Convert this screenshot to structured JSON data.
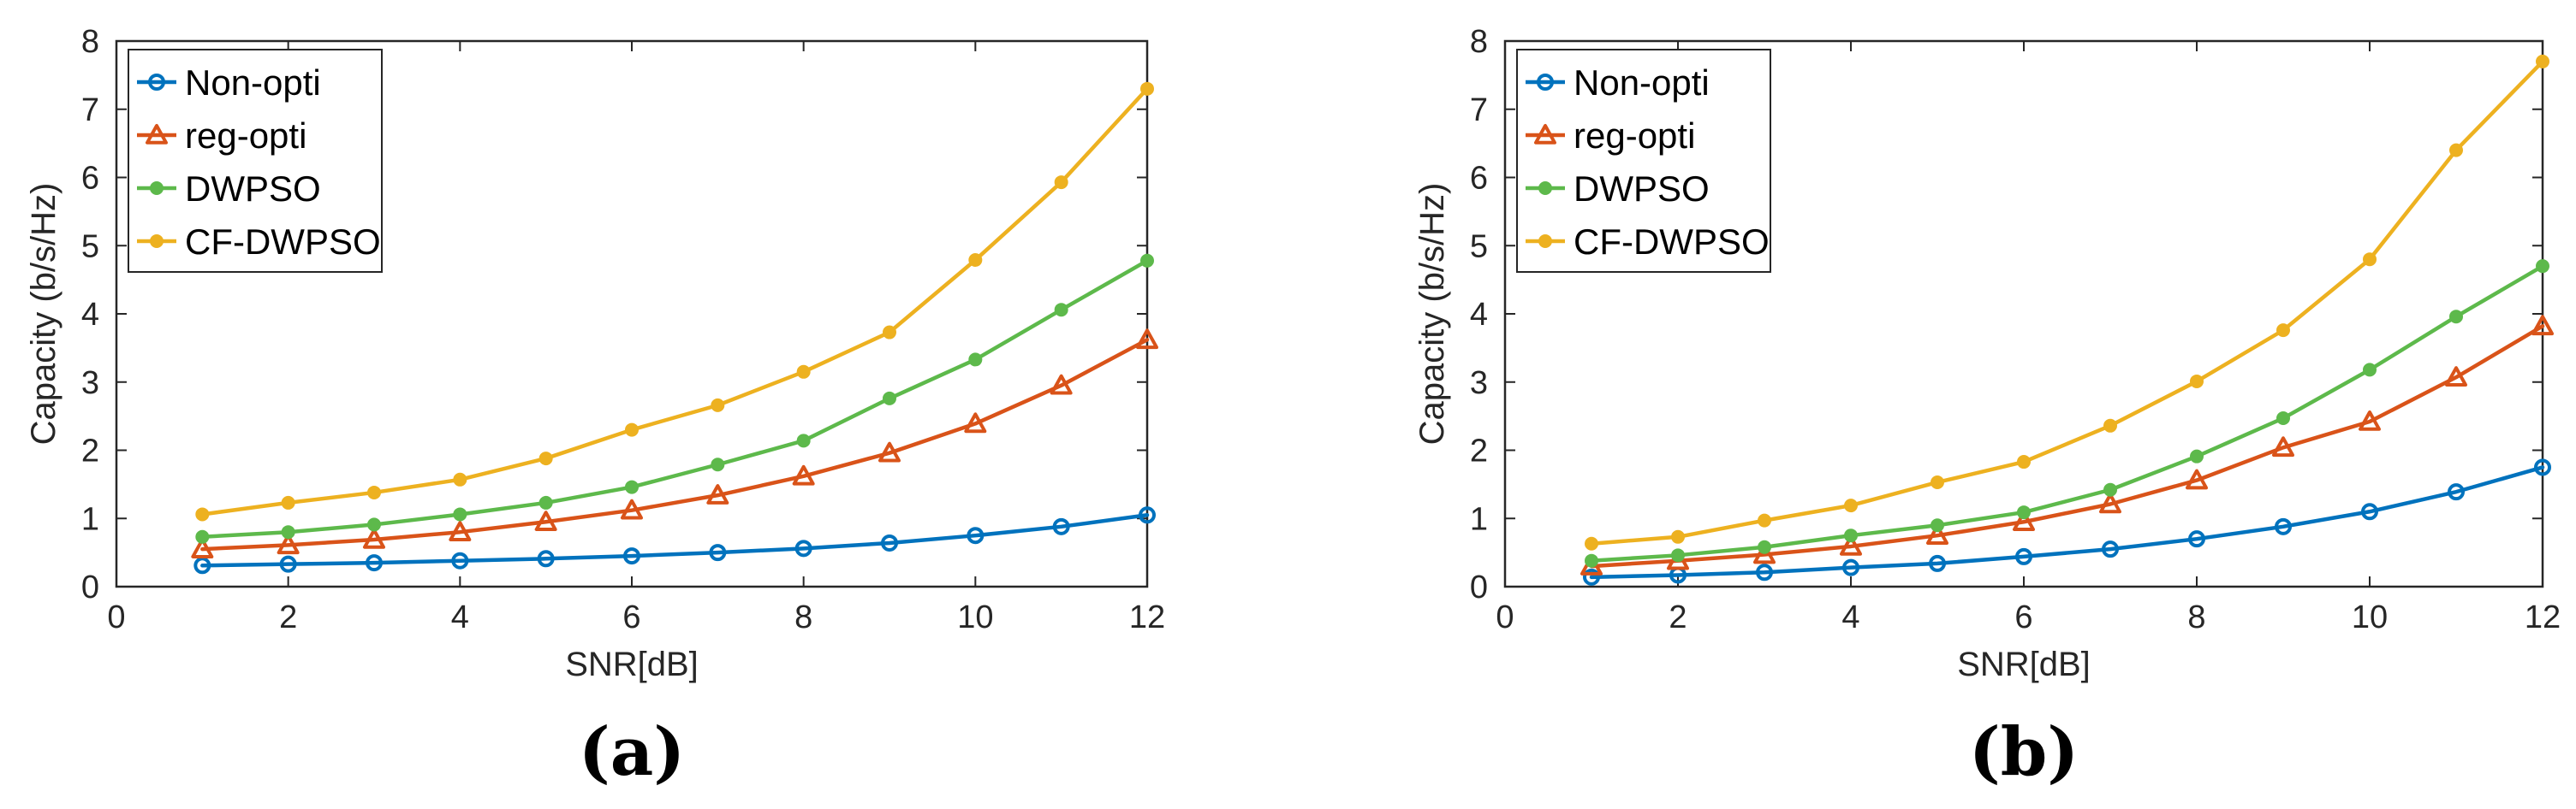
{
  "colors": {
    "non_opti": "#0072BD",
    "reg_opti": "#D95319",
    "dwpso": "#5DB94B",
    "cf_dwpso": "#EDB120",
    "axis": "#262626"
  },
  "chart_data": [
    {
      "type": "line",
      "panel_label": "(a)",
      "xlabel": "SNR[dB]",
      "ylabel": "Capacity (b/s/Hz)",
      "xlim": [
        0,
        12
      ],
      "ylim": [
        0,
        8
      ],
      "xticks": [
        "0",
        "2",
        "4",
        "6",
        "8",
        "10",
        "12"
      ],
      "yticks": [
        "0",
        "1",
        "2",
        "3",
        "4",
        "5",
        "6",
        "7",
        "8"
      ],
      "legend_position": "top-left",
      "series": [
        {
          "name": "Non-opti",
          "marker": "circle",
          "color_key": "non_opti",
          "x": [
            1,
            2,
            3,
            4,
            5,
            6,
            7,
            8,
            9,
            10,
            11,
            12
          ],
          "y": [
            0.31,
            0.33,
            0.35,
            0.38,
            0.41,
            0.45,
            0.5,
            0.56,
            0.64,
            0.75,
            0.88,
            1.05
          ]
        },
        {
          "name": "reg-opti",
          "marker": "triangle",
          "color_key": "reg_opti",
          "x": [
            1,
            2,
            3,
            4,
            5,
            6,
            7,
            8,
            9,
            10,
            11,
            12
          ],
          "y": [
            0.55,
            0.61,
            0.69,
            0.8,
            0.95,
            1.12,
            1.34,
            1.62,
            1.96,
            2.39,
            2.95,
            3.62
          ]
        },
        {
          "name": "DWPSO",
          "marker": "dot",
          "color_key": "dwpso",
          "x": [
            1,
            2,
            3,
            4,
            5,
            6,
            7,
            8,
            9,
            10,
            11,
            12
          ],
          "y": [
            0.73,
            0.8,
            0.91,
            1.06,
            1.23,
            1.46,
            1.79,
            2.14,
            2.76,
            3.33,
            4.06,
            4.78
          ]
        },
        {
          "name": "CF-DWPSO",
          "marker": "dot",
          "color_key": "cf_dwpso",
          "x": [
            1,
            2,
            3,
            4,
            5,
            6,
            7,
            8,
            9,
            10,
            11,
            12
          ],
          "y": [
            1.06,
            1.23,
            1.38,
            1.57,
            1.88,
            2.3,
            2.66,
            3.15,
            3.73,
            4.79,
            5.93,
            7.3
          ]
        }
      ]
    },
    {
      "type": "line",
      "panel_label": "(b)",
      "xlabel": "SNR[dB]",
      "ylabel": "Capacity (b/s/Hz)",
      "xlim": [
        0,
        12
      ],
      "ylim": [
        0,
        8
      ],
      "xticks": [
        "0",
        "2",
        "4",
        "6",
        "8",
        "10",
        "12"
      ],
      "yticks": [
        "0",
        "1",
        "2",
        "3",
        "4",
        "5",
        "6",
        "7",
        "8"
      ],
      "legend_position": "top-left",
      "series": [
        {
          "name": "Non-opti",
          "marker": "circle",
          "color_key": "non_opti",
          "x": [
            1,
            2,
            3,
            4,
            5,
            6,
            7,
            8,
            9,
            10,
            11,
            12
          ],
          "y": [
            0.14,
            0.17,
            0.21,
            0.28,
            0.34,
            0.44,
            0.55,
            0.7,
            0.88,
            1.1,
            1.39,
            1.75
          ]
        },
        {
          "name": "reg-opti",
          "marker": "triangle",
          "color_key": "reg_opti",
          "x": [
            1,
            2,
            3,
            4,
            5,
            6,
            7,
            8,
            9,
            10,
            11,
            12
          ],
          "y": [
            0.3,
            0.38,
            0.47,
            0.59,
            0.75,
            0.95,
            1.21,
            1.56,
            2.04,
            2.42,
            3.07,
            3.82
          ]
        },
        {
          "name": "DWPSO",
          "marker": "dot",
          "color_key": "dwpso",
          "x": [
            1,
            2,
            3,
            4,
            5,
            6,
            7,
            8,
            9,
            10,
            11,
            12
          ],
          "y": [
            0.38,
            0.46,
            0.58,
            0.75,
            0.9,
            1.09,
            1.42,
            1.91,
            2.47,
            3.18,
            3.96,
            4.7
          ]
        },
        {
          "name": "CF-DWPSO",
          "marker": "dot",
          "color_key": "cf_dwpso",
          "x": [
            1,
            2,
            3,
            4,
            5,
            6,
            7,
            8,
            9,
            10,
            11,
            12
          ],
          "y": [
            0.63,
            0.73,
            0.97,
            1.19,
            1.53,
            1.83,
            2.36,
            3.01,
            3.76,
            4.8,
            6.4,
            7.7
          ]
        }
      ]
    }
  ]
}
